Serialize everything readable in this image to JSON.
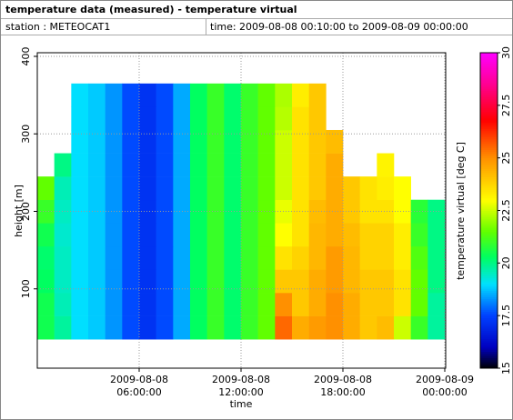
{
  "header": {
    "title": "temperature data (measured) - temperature virtual",
    "station": "station : METEOCAT1",
    "time_range": "time: 2009-08-08 00:10:00 to 2009-08-09 00:00:00"
  },
  "chart_data": {
    "type": "heatmap",
    "xlabel": "time",
    "ylabel": "height [m]",
    "colorbar_label": "temperature virtual [deg C]",
    "xlim": [
      0,
      24
    ],
    "xticks": [
      {
        "value": 6,
        "label": "2009-08-08 06:00:00"
      },
      {
        "value": 12,
        "label": "2009-08-08 12:00:00"
      },
      {
        "value": 18,
        "label": "2009-08-08 18:00:00"
      },
      {
        "value": 24,
        "label": "2009-08-09 00:00:00"
      }
    ],
    "ylim": [
      0,
      400
    ],
    "yticks": [
      100,
      200,
      300,
      400
    ],
    "clim": [
      15,
      30
    ],
    "cticks": [
      15,
      17.5,
      20,
      22.5,
      25,
      27.5,
      30
    ],
    "grid": true,
    "xbins": [
      0,
      1,
      2,
      3,
      4,
      5,
      6,
      7,
      8,
      9,
      10,
      11,
      12,
      13,
      14,
      15,
      16,
      17,
      18,
      19,
      20,
      21,
      22,
      23,
      24
    ],
    "ybins": [
      35,
      65,
      95,
      125,
      155,
      185,
      215,
      245,
      275,
      305,
      335,
      365
    ],
    "z": [
      [
        20.5,
        19.8,
        19,
        18.8,
        18.3,
        17.6,
        17.2,
        17.6,
        18.5,
        20.3,
        21,
        20.2,
        21,
        21.5,
        25.5,
        24.5,
        24.8,
        25,
        24.5,
        24,
        24.2,
        22.5,
        21,
        19.8
      ],
      [
        20.5,
        19.6,
        19,
        18.8,
        18.3,
        17.6,
        17.2,
        17.6,
        18.5,
        20.3,
        21,
        20.2,
        21,
        21.5,
        25,
        24,
        24.5,
        25,
        24.5,
        24,
        24,
        23.5,
        21.5,
        19.8
      ],
      [
        20.3,
        19.5,
        19,
        18.8,
        18.3,
        17.6,
        17.2,
        17.6,
        18.5,
        20.3,
        21,
        20.2,
        21,
        21.5,
        24,
        24,
        24.5,
        24.8,
        24.3,
        24,
        24,
        23.5,
        21.5,
        20
      ],
      [
        20.2,
        19.5,
        19,
        18.8,
        18.3,
        17.6,
        17.2,
        17.6,
        18.5,
        20.3,
        21,
        20.2,
        21,
        21.5,
        23.5,
        23.8,
        24.3,
        24.8,
        24.3,
        23.8,
        23.8,
        23.3,
        21.3,
        20
      ],
      [
        20.5,
        19.4,
        19,
        18.8,
        18.3,
        17.6,
        17.2,
        17.6,
        18.5,
        20.3,
        21,
        20.2,
        21,
        21.5,
        23,
        23.5,
        24.3,
        24.5,
        24.2,
        23.8,
        23.8,
        23.3,
        21,
        20
      ],
      [
        21,
        19.5,
        19,
        18.8,
        18.3,
        17.6,
        17.2,
        17.6,
        18.5,
        20.3,
        21,
        20.2,
        21,
        21.5,
        22.8,
        23.5,
        24.2,
        24.5,
        24,
        23.5,
        23.5,
        23,
        20.8,
        20
      ],
      [
        21.5,
        19.6,
        19,
        18.8,
        18.3,
        17.6,
        17.2,
        17.6,
        18.5,
        20.3,
        21,
        20.2,
        21,
        21.5,
        22.5,
        23.5,
        24,
        24.5,
        24,
        23.5,
        23.3,
        23,
        null,
        null
      ],
      [
        null,
        20,
        19,
        18.8,
        18.3,
        17.6,
        17.2,
        17.6,
        18.5,
        20.3,
        21,
        20.2,
        21,
        21.5,
        22.5,
        23.5,
        24,
        24.5,
        null,
        null,
        23.2,
        null,
        null,
        null
      ],
      [
        null,
        null,
        19,
        18.8,
        18.3,
        17.6,
        17.2,
        17.6,
        18.5,
        20.3,
        21,
        20.2,
        21,
        21.5,
        22.5,
        23.5,
        24,
        24.2,
        null,
        null,
        null,
        null,
        null,
        null
      ],
      [
        null,
        null,
        19,
        18.8,
        18.3,
        17.6,
        17.2,
        17.6,
        18.5,
        20.3,
        21,
        20.2,
        21,
        21.5,
        22.3,
        23.5,
        24,
        null,
        null,
        null,
        null,
        null,
        null,
        null
      ],
      [
        null,
        null,
        19,
        18.8,
        18.3,
        17.6,
        17.2,
        17.6,
        18.5,
        20.3,
        21,
        20.2,
        21,
        21.5,
        22.2,
        23.3,
        24,
        null,
        null,
        null,
        null,
        null,
        null,
        null
      ]
    ]
  }
}
